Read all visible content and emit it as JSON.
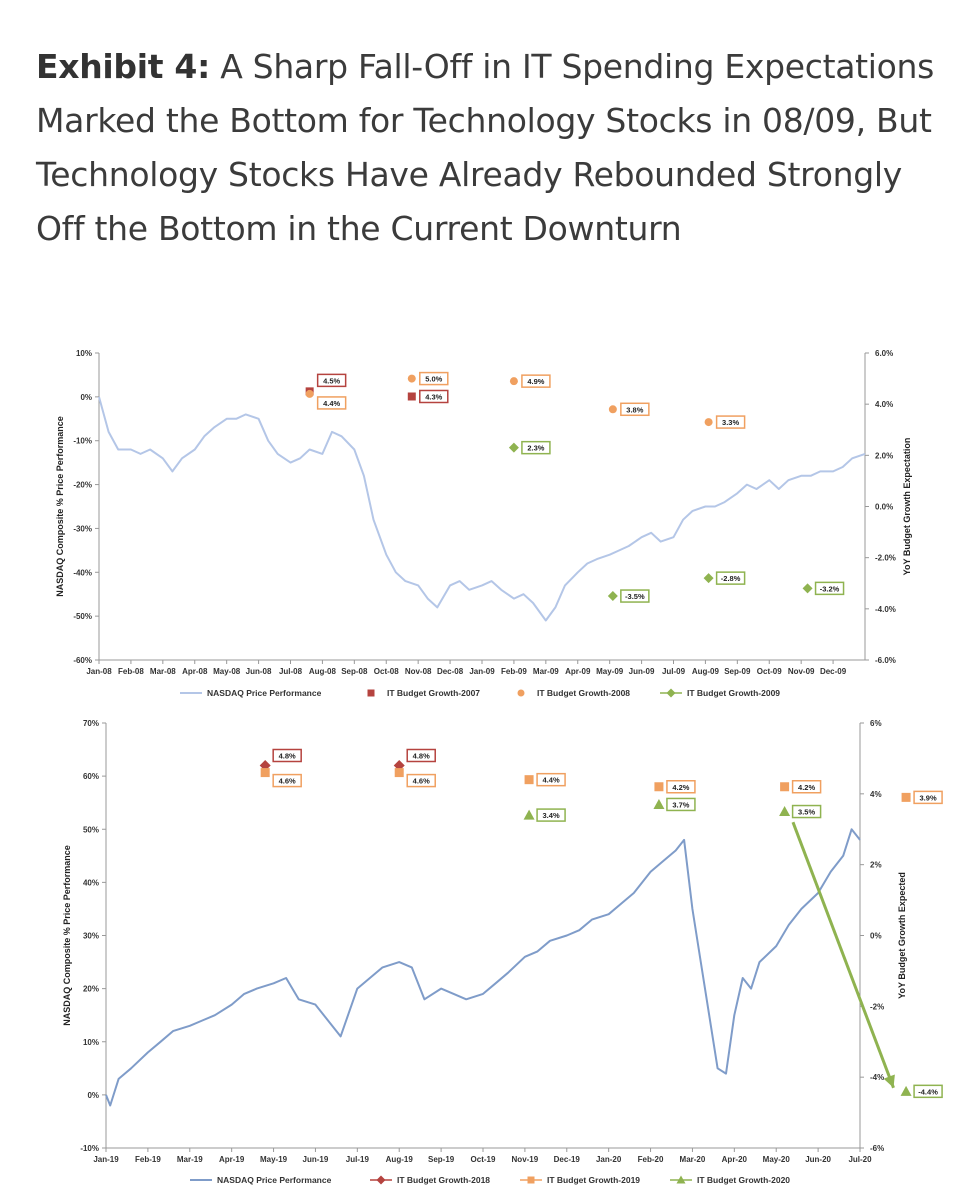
{
  "title": {
    "label": "Exhibit 4:",
    "text": "A Sharp Fall-Off in IT Spending Expectations Marked the Bottom for Technology Stocks in 08/09, But Technology Stocks Have Already Rebounded Strongly Off the Bottom in the Current Downturn"
  },
  "colors": {
    "nasdaq_2008": "#b4c6e7",
    "nasdaq_2020": "#7f9cc9",
    "red": "#b5433f",
    "orange": "#f0a060",
    "green": "#8fb350"
  },
  "chart_data": [
    {
      "type": "line",
      "ylabel": "NASDAQ Composite % Price Performance",
      "y2label": "YoY Budget Growth Expectation",
      "ylim": [
        -60,
        10
      ],
      "y2lim": [
        -6,
        6
      ],
      "yticks": [
        10,
        0,
        -10,
        -20,
        -30,
        -40,
        -50,
        -60
      ],
      "yticks_labels": [
        "10%",
        "0%",
        "-10%",
        "-20%",
        "-30%",
        "-40%",
        "-50%",
        "-60%"
      ],
      "y2ticks": [
        6,
        4,
        2,
        0,
        -2,
        -4,
        -6
      ],
      "y2ticks_labels": [
        "6.0%",
        "4.0%",
        "2.0%",
        "0.0%",
        "-2.0%",
        "-4.0%",
        "-6.0%"
      ],
      "xticks": [
        "Jan-08",
        "Feb-08",
        "Mar-08",
        "Apr-08",
        "May-08",
        "Jun-08",
        "Jul-08",
        "Aug-08",
        "Sep-08",
        "Oct-08",
        "Nov-08",
        "Dec-08",
        "Jan-09",
        "Feb-09",
        "Mar-09",
        "Apr-09",
        "May-09",
        "Jun-09",
        "Jul-09",
        "Aug-09",
        "Sep-09",
        "Oct-09",
        "Nov-09",
        "Dec-09"
      ],
      "x_range": [
        0,
        24
      ],
      "line": {
        "name": "NASDAQ Price Performance",
        "x": [
          0,
          0.3,
          0.6,
          1.0,
          1.3,
          1.6,
          2.0,
          2.3,
          2.6,
          3.0,
          3.3,
          3.6,
          4.0,
          4.3,
          4.6,
          5.0,
          5.3,
          5.6,
          6.0,
          6.3,
          6.6,
          7.0,
          7.3,
          7.6,
          8.0,
          8.3,
          8.6,
          9.0,
          9.3,
          9.6,
          10.0,
          10.3,
          10.6,
          11.0,
          11.3,
          11.6,
          12.0,
          12.3,
          12.6,
          13.0,
          13.3,
          13.6,
          14.0,
          14.3,
          14.6,
          15.0,
          15.3,
          15.6,
          16.0,
          16.3,
          16.6,
          17.0,
          17.3,
          17.6,
          18.0,
          18.3,
          18.6,
          19.0,
          19.3,
          19.6,
          20.0,
          20.3,
          20.6,
          21.0,
          21.3,
          21.6,
          22.0,
          22.3,
          22.6,
          23.0,
          23.3,
          23.6,
          24.0
        ],
        "y": [
          0,
          -8,
          -12,
          -12,
          -13,
          -12,
          -14,
          -17,
          -14,
          -12,
          -9,
          -7,
          -5,
          -5,
          -4,
          -5,
          -10,
          -13,
          -15,
          -14,
          -12,
          -13,
          -8,
          -9,
          -12,
          -18,
          -28,
          -36,
          -40,
          -42,
          -43,
          -46,
          -48,
          -43,
          -42,
          -44,
          -43,
          -42,
          -44,
          -46,
          -45,
          -47,
          -51,
          -48,
          -43,
          -40,
          -38,
          -37,
          -36,
          -35,
          -34,
          -32,
          -31,
          -33,
          -32,
          -28,
          -26,
          -25,
          -25,
          -24,
          -22,
          -20,
          -21,
          -19,
          -21,
          -19,
          -18,
          -18,
          -17,
          -17,
          -16,
          -14,
          -13
        ]
      },
      "markers": [
        {
          "series": "IT Budget Growth-2007",
          "shape": "square",
          "color": "red",
          "x": 6.6,
          "y2": 4.5,
          "label": "4.5%",
          "label_dy": -11
        },
        {
          "series": "IT Budget Growth-2008",
          "shape": "circle",
          "color": "orange",
          "x": 6.6,
          "y2": 4.4,
          "label": "4.4%",
          "label_dy": 9
        },
        {
          "series": "IT Budget Growth-2008",
          "shape": "circle",
          "color": "orange",
          "x": 9.8,
          "y2": 5.0,
          "label": "5.0%",
          "label_dy": 0
        },
        {
          "series": "IT Budget Growth-2007",
          "shape": "square",
          "color": "red",
          "x": 9.8,
          "y2": 4.3,
          "label": "4.3%",
          "label_dy": 0
        },
        {
          "series": "IT Budget Growth-2008",
          "shape": "circle",
          "color": "orange",
          "x": 13.0,
          "y2": 4.9,
          "label": "4.9%",
          "label_dy": 0
        },
        {
          "series": "IT Budget Growth-2009",
          "shape": "diamond",
          "color": "green",
          "x": 13.0,
          "y2": 2.3,
          "label": "2.3%",
          "label_dy": 0
        },
        {
          "series": "IT Budget Growth-2008",
          "shape": "circle",
          "color": "orange",
          "x": 16.1,
          "y2": 3.8,
          "label": "3.8%",
          "label_dy": 0
        },
        {
          "series": "IT Budget Growth-2009",
          "shape": "diamond",
          "color": "green",
          "x": 16.1,
          "y2": -3.5,
          "label": "-3.5%",
          "label_dy": 0
        },
        {
          "series": "IT Budget Growth-2008",
          "shape": "circle",
          "color": "orange",
          "x": 19.1,
          "y2": 3.3,
          "label": "3.3%",
          "label_dy": 0
        },
        {
          "series": "IT Budget Growth-2009",
          "shape": "diamond",
          "color": "green",
          "x": 19.1,
          "y2": -2.8,
          "label": "-2.8%",
          "label_dy": 0
        },
        {
          "series": "IT Budget Growth-2009",
          "shape": "diamond",
          "color": "green",
          "x": 22.2,
          "y2": -3.2,
          "label": "-3.2%",
          "label_dy": 0
        }
      ],
      "legend": [
        {
          "name": "NASDAQ Price Performance",
          "shape": "line",
          "color": "nasdaq_2008"
        },
        {
          "name": "IT Budget Growth-2007",
          "shape": "square",
          "color": "red"
        },
        {
          "name": "IT Budget Growth-2008",
          "shape": "circle",
          "color": "orange"
        },
        {
          "name": "IT Budget Growth-2009",
          "shape": "diamond",
          "color": "green"
        }
      ],
      "legend_position": "bottom"
    },
    {
      "type": "line",
      "ylabel": "NASDAQ Composite % Price Performance",
      "y2label": "YoY Budget Growth Expected",
      "ylim": [
        -10,
        70
      ],
      "y2lim": [
        -6,
        6
      ],
      "yticks": [
        70,
        60,
        50,
        40,
        30,
        20,
        10,
        0,
        -10
      ],
      "yticks_labels": [
        "70%",
        "60%",
        "50%",
        "40%",
        "30%",
        "20%",
        "10%",
        "0%",
        "-10%"
      ],
      "y2ticks": [
        6,
        4,
        2,
        0,
        -2,
        -4,
        -6
      ],
      "y2ticks_labels": [
        "6%",
        "4%",
        "2%",
        "0%",
        "-2%",
        "-4%",
        "-6%"
      ],
      "xticks": [
        "Jan-19",
        "Feb-19",
        "Mar-19",
        "Apr-19",
        "May-19",
        "Jun-19",
        "Jul-19",
        "Aug-19",
        "Sep-19",
        "Oct-19",
        "Nov-19",
        "Dec-19",
        "Jan-20",
        "Feb-20",
        "Mar-20",
        "Apr-20",
        "May-20",
        "Jun-20",
        "Jul-20"
      ],
      "x_range": [
        0,
        18
      ],
      "line": {
        "name": "NASDAQ Price Performance",
        "x": [
          0,
          0.1,
          0.3,
          0.6,
          1.0,
          1.3,
          1.6,
          2.0,
          2.3,
          2.6,
          3.0,
          3.3,
          3.6,
          4.0,
          4.3,
          4.6,
          5.0,
          5.3,
          5.6,
          6.0,
          6.3,
          6.6,
          7.0,
          7.3,
          7.6,
          8.0,
          8.3,
          8.6,
          9.0,
          9.3,
          9.6,
          10.0,
          10.3,
          10.6,
          11.0,
          11.3,
          11.6,
          12.0,
          12.3,
          12.6,
          13.0,
          13.3,
          13.6,
          13.8,
          14.0,
          14.2,
          14.4,
          14.6,
          14.8,
          15.0,
          15.2,
          15.4,
          15.6,
          16.0,
          16.3,
          16.6,
          17.0,
          17.3,
          17.6,
          17.8,
          18.0
        ],
        "y": [
          0,
          -2,
          3,
          5,
          8,
          10,
          12,
          13,
          14,
          15,
          17,
          19,
          20,
          21,
          22,
          18,
          17,
          14,
          11,
          20,
          22,
          24,
          25,
          24,
          18,
          20,
          19,
          18,
          19,
          21,
          23,
          26,
          27,
          29,
          30,
          31,
          33,
          34,
          36,
          38,
          42,
          44,
          46,
          48,
          35,
          25,
          15,
          5,
          4,
          15,
          22,
          20,
          25,
          28,
          32,
          35,
          38,
          42,
          45,
          50,
          48
        ]
      },
      "markers": [
        {
          "series": "IT Budget Growth-2018",
          "shape": "diamond",
          "color": "red",
          "x": 3.8,
          "y2": 4.8,
          "label": "4.8%",
          "label_dy": -10
        },
        {
          "series": "IT Budget Growth-2019",
          "shape": "square",
          "color": "orange",
          "x": 3.8,
          "y2": 4.6,
          "label": "4.6%",
          "label_dy": 8
        },
        {
          "series": "IT Budget Growth-2018",
          "shape": "diamond",
          "color": "red",
          "x": 7.0,
          "y2": 4.8,
          "label": "4.8%",
          "label_dy": -10
        },
        {
          "series": "IT Budget Growth-2019",
          "shape": "square",
          "color": "orange",
          "x": 7.0,
          "y2": 4.6,
          "label": "4.6%",
          "label_dy": 8
        },
        {
          "series": "IT Budget Growth-2019",
          "shape": "square",
          "color": "orange",
          "x": 10.1,
          "y2": 4.4,
          "label": "4.4%",
          "label_dy": 0
        },
        {
          "series": "IT Budget Growth-2020",
          "shape": "triangle",
          "color": "green",
          "x": 10.1,
          "y2": 3.4,
          "label": "3.4%",
          "label_dy": 0
        },
        {
          "series": "IT Budget Growth-2019",
          "shape": "square",
          "color": "orange",
          "x": 13.2,
          "y2": 4.2,
          "label": "4.2%",
          "label_dy": 0
        },
        {
          "series": "IT Budget Growth-2020",
          "shape": "triangle",
          "color": "green",
          "x": 13.2,
          "y2": 3.7,
          "label": "3.7%",
          "label_dy": 0
        },
        {
          "series": "IT Budget Growth-2019",
          "shape": "square",
          "color": "orange",
          "x": 16.2,
          "y2": 4.2,
          "label": "4.2%",
          "label_dy": 0
        },
        {
          "series": "IT Budget Growth-2020",
          "shape": "triangle",
          "color": "green",
          "x": 16.2,
          "y2": 3.5,
          "label": "3.5%",
          "label_dy": 0
        },
        {
          "series": "IT Budget Growth-2019",
          "shape": "square",
          "color": "orange",
          "x": 19.1,
          "y2": 3.9,
          "label": "3.9%",
          "label_dy": 0
        },
        {
          "series": "IT Budget Growth-2020",
          "shape": "triangle",
          "color": "green",
          "x": 19.1,
          "y2": -4.4,
          "label": "-4.4%",
          "label_dy": 0
        }
      ],
      "arrow": {
        "color": "green",
        "from": {
          "x": 16.4,
          "y2": 3.2
        },
        "to": {
          "x": 18.8,
          "y2": -4.3
        }
      },
      "legend": [
        {
          "name": "NASDAQ Price Performance",
          "shape": "line",
          "color": "nasdaq_2020"
        },
        {
          "name": "IT Budget Growth-2018",
          "shape": "diamond",
          "color": "red"
        },
        {
          "name": "IT Budget Growth-2019",
          "shape": "square",
          "color": "orange"
        },
        {
          "name": "IT Budget Growth-2020",
          "shape": "triangle",
          "color": "green"
        }
      ],
      "legend_position": "bottom"
    }
  ]
}
